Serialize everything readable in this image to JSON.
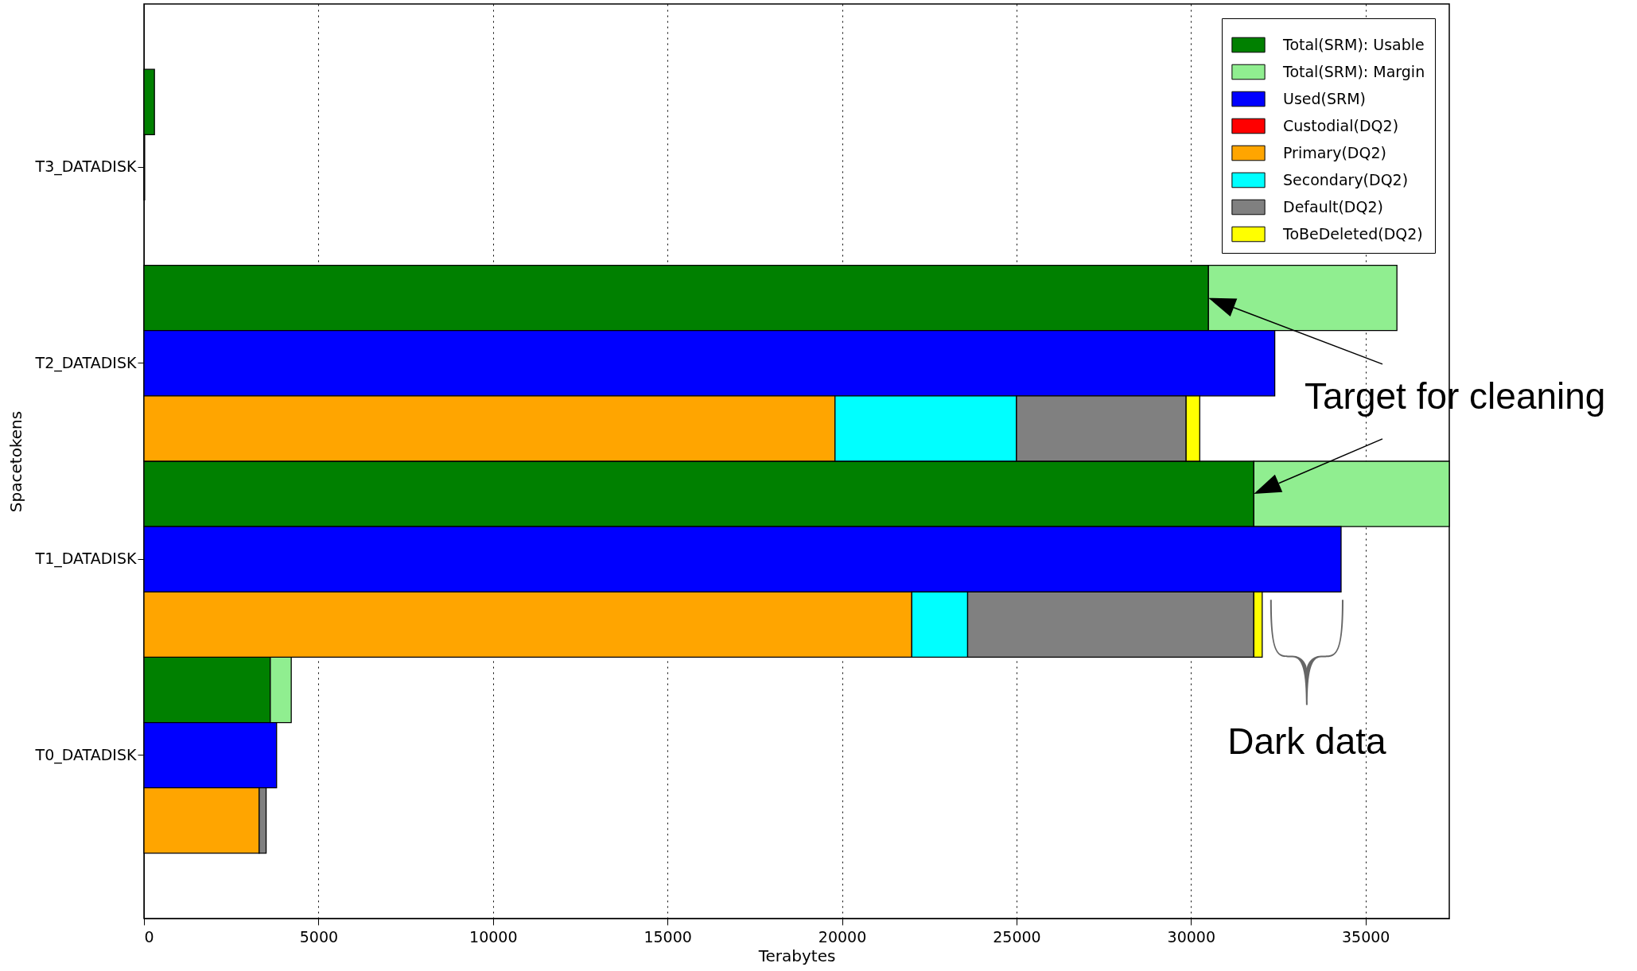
{
  "chart_data": {
    "type": "bar",
    "orientation": "horizontal",
    "stacked": true,
    "categories": [
      null,
      "T3_DATADISK",
      null,
      null,
      "T2_DATADISK",
      null,
      null,
      "T1_DATADISK",
      null,
      null,
      "T0_DATADISK",
      null
    ],
    "series": [
      {
        "name": "Total(SRM): Usable",
        "color": "#008000",
        "values": [
          300,
          null,
          null,
          30500,
          null,
          null,
          31800,
          null,
          null,
          3620,
          null,
          null
        ]
      },
      {
        "name": "Total(SRM): Margin",
        "color": "#90ee90",
        "values": [
          null,
          null,
          null,
          5400,
          null,
          null,
          5600,
          null,
          null,
          600,
          null,
          null
        ]
      },
      {
        "name": "Used(SRM)",
        "color": "#0000ff",
        "values": [
          null,
          20,
          null,
          null,
          32400,
          null,
          null,
          34300,
          null,
          null,
          3800,
          null
        ]
      },
      {
        "name": "Custodial(DQ2)",
        "color": "#ff0000",
        "values": [
          null,
          null,
          null,
          null,
          null,
          null,
          null,
          null,
          null,
          null,
          null,
          null
        ]
      },
      {
        "name": "Primary(DQ2)",
        "color": "#ffa500",
        "values": [
          null,
          null,
          null,
          null,
          null,
          19800,
          null,
          null,
          22000,
          null,
          null,
          3300
        ]
      },
      {
        "name": "Secondary(DQ2)",
        "color": "#00ffff",
        "values": [
          null,
          null,
          null,
          null,
          null,
          5200,
          null,
          null,
          1600,
          null,
          null,
          null
        ]
      },
      {
        "name": "Default(DQ2)",
        "color": "#808080",
        "values": [
          null,
          null,
          null,
          null,
          null,
          4860,
          null,
          null,
          8200,
          null,
          null,
          200
        ]
      },
      {
        "name": "ToBeDeleted(DQ2)",
        "color": "#ffff00",
        "values": [
          null,
          null,
          null,
          null,
          null,
          390,
          null,
          null,
          240,
          null,
          null,
          null
        ]
      }
    ],
    "xlabel": "Terabytes",
    "ylabel": "Spacetokens",
    "xlim": [
      0,
      37400
    ],
    "xticks": [
      0,
      5000,
      10000,
      15000,
      20000,
      25000,
      30000,
      35000
    ],
    "grid": "x",
    "legend": "top right",
    "annotations": [
      "Target for cleaning",
      "Dark data"
    ]
  }
}
